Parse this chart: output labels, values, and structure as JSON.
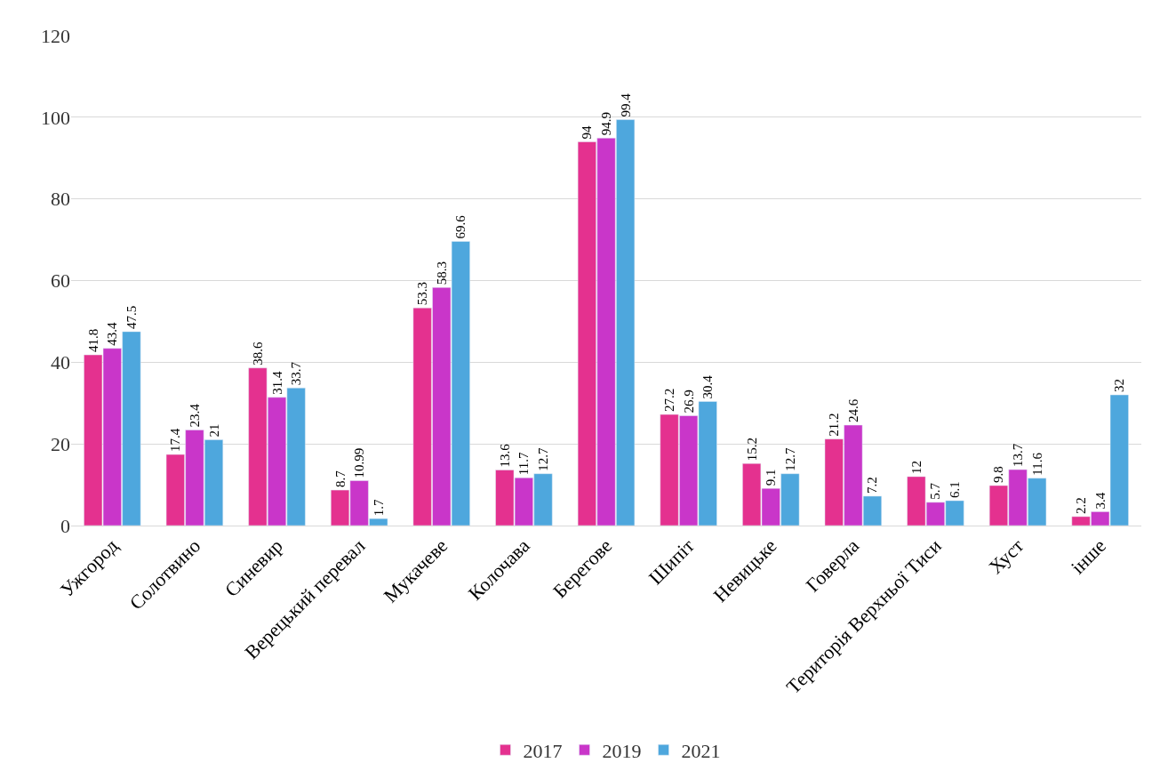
{
  "chart_data": {
    "type": "bar",
    "categories": [
      "Ужгород",
      "Солотвино",
      "Синевир",
      "Верецький перевал",
      "Мукачеве",
      "Колочава",
      "Берегове",
      "Шипіт",
      "Невицьке",
      "Говерла",
      "Територія Верхньої Тиси",
      "Хуст",
      "інше"
    ],
    "series": [
      {
        "name": "2017",
        "color": "#e4318f",
        "values": [
          41.8,
          17.4,
          38.6,
          8.7,
          53.3,
          13.6,
          94,
          27.2,
          15.2,
          21.2,
          12,
          9.8,
          2.2
        ]
      },
      {
        "name": "2019",
        "color": "#c936c9",
        "values": [
          43.4,
          23.4,
          31.4,
          10.99,
          58.3,
          11.7,
          94.9,
          26.9,
          9.1,
          24.6,
          5.7,
          13.7,
          3.4
        ]
      },
      {
        "name": "2021",
        "color": "#4ea7dd",
        "values": [
          47.5,
          21,
          33.7,
          1.7,
          69.6,
          12.7,
          99.4,
          30.4,
          12.7,
          7.2,
          6.1,
          11.6,
          32
        ]
      }
    ],
    "ylim": [
      0,
      120
    ],
    "yticks": [
      0,
      20,
      40,
      60,
      80,
      100,
      120
    ],
    "grid": "y",
    "legend": "bottom",
    "data_labels": true
  }
}
